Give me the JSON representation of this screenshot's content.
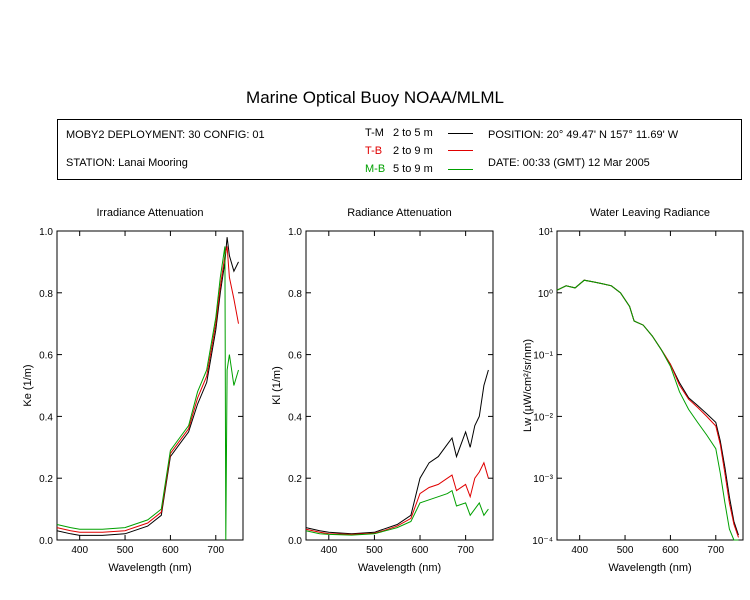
{
  "title": "Marine Optical Buoy NOAA/MLML",
  "header": {
    "deployment": "MOBY2 DEPLOYMENT: 30 CONFIG: 01",
    "station": "STATION: Lanai Mooring",
    "position": "POSITION: 20° 49.47' N   157° 11.69' W",
    "date": "DATE: 00:33 (GMT) 12 Mar 2005",
    "legend": [
      {
        "code": "T-M",
        "range": "2 to 5  m",
        "color": "#000000"
      },
      {
        "code": "T-B",
        "range": "2 to 9  m",
        "color": "#e00000"
      },
      {
        "code": "M-B",
        "range": "5 to 9  m",
        "color": "#00a000"
      }
    ]
  },
  "chart_data": [
    {
      "type": "line",
      "title": "Irradiance Attenuation",
      "xlabel": "Wavelength (nm)",
      "ylabel": "Ke  (1/m)",
      "xlim": [
        350,
        760
      ],
      "ylim": [
        0,
        1
      ],
      "xticks": [
        400,
        500,
        600,
        700
      ],
      "yticks": [
        0,
        0.2,
        0.4,
        0.6,
        0.8,
        1.0
      ],
      "ytick_labels": [
        "0.0",
        "0.2",
        "0.4",
        "0.6",
        "0.8",
        "1.0"
      ],
      "series": [
        {
          "code": "T-M",
          "color": "#000000",
          "x": [
            350,
            380,
            400,
            450,
            500,
            520,
            550,
            580,
            600,
            620,
            640,
            660,
            680,
            700,
            710,
            720,
            725,
            730,
            740,
            750
          ],
          "y": [
            0.03,
            0.02,
            0.015,
            0.015,
            0.02,
            0.03,
            0.045,
            0.08,
            0.27,
            0.31,
            0.35,
            0.44,
            0.51,
            0.68,
            0.8,
            0.9,
            0.98,
            0.92,
            0.87,
            0.9
          ]
        },
        {
          "code": "T-B",
          "color": "#e00000",
          "x": [
            350,
            380,
            400,
            450,
            500,
            520,
            550,
            580,
            600,
            620,
            640,
            660,
            680,
            700,
            710,
            720,
            725,
            730,
            740,
            750
          ],
          "y": [
            0.04,
            0.03,
            0.025,
            0.025,
            0.03,
            0.04,
            0.055,
            0.09,
            0.28,
            0.32,
            0.36,
            0.46,
            0.53,
            0.7,
            0.82,
            0.92,
            0.95,
            0.85,
            0.78,
            0.7
          ]
        },
        {
          "code": "M-B",
          "color": "#00a000",
          "x": [
            350,
            380,
            400,
            450,
            500,
            520,
            550,
            580,
            600,
            620,
            640,
            660,
            680,
            700,
            710,
            720,
            722,
            725,
            730,
            740,
            750
          ],
          "y": [
            0.05,
            0.04,
            0.035,
            0.035,
            0.04,
            0.05,
            0.065,
            0.1,
            0.29,
            0.33,
            0.37,
            0.48,
            0.55,
            0.72,
            0.85,
            0.95,
            0.0,
            0.55,
            0.6,
            0.5,
            0.55
          ]
        }
      ]
    },
    {
      "type": "line",
      "title": "Radiance Attenuation",
      "xlabel": "Wavelength (nm)",
      "ylabel": "Kl  (1/m)",
      "xlim": [
        350,
        760
      ],
      "ylim": [
        0,
        1
      ],
      "xticks": [
        400,
        500,
        600,
        700
      ],
      "yticks": [
        0,
        0.2,
        0.4,
        0.6,
        0.8,
        1.0
      ],
      "ytick_labels": [
        "0.0",
        "0.2",
        "0.4",
        "0.6",
        "0.8",
        "1.0"
      ],
      "series": [
        {
          "code": "T-M",
          "color": "#000000",
          "x": [
            350,
            380,
            400,
            450,
            500,
            520,
            550,
            580,
            600,
            620,
            640,
            660,
            670,
            680,
            700,
            710,
            720,
            730,
            740,
            750
          ],
          "y": [
            0.04,
            0.03,
            0.025,
            0.02,
            0.025,
            0.035,
            0.05,
            0.08,
            0.2,
            0.25,
            0.27,
            0.31,
            0.33,
            0.27,
            0.35,
            0.3,
            0.37,
            0.4,
            0.5,
            0.55
          ]
        },
        {
          "code": "T-B",
          "color": "#e00000",
          "x": [
            350,
            380,
            400,
            450,
            500,
            520,
            550,
            580,
            600,
            620,
            640,
            660,
            670,
            680,
            700,
            710,
            720,
            730,
            740,
            750
          ],
          "y": [
            0.035,
            0.025,
            0.02,
            0.018,
            0.022,
            0.03,
            0.045,
            0.07,
            0.15,
            0.17,
            0.18,
            0.2,
            0.21,
            0.16,
            0.18,
            0.14,
            0.2,
            0.22,
            0.25,
            0.2
          ]
        },
        {
          "code": "M-B",
          "color": "#00a000",
          "x": [
            350,
            380,
            400,
            450,
            500,
            520,
            550,
            580,
            600,
            620,
            640,
            660,
            670,
            680,
            700,
            710,
            720,
            730,
            740,
            750
          ],
          "y": [
            0.03,
            0.02,
            0.018,
            0.016,
            0.02,
            0.028,
            0.04,
            0.06,
            0.12,
            0.13,
            0.14,
            0.15,
            0.16,
            0.11,
            0.12,
            0.08,
            0.1,
            0.12,
            0.08,
            0.1
          ]
        }
      ]
    },
    {
      "type": "line",
      "title": "Water Leaving Radiance",
      "xlabel": "Wavelength (nm)",
      "ylabel": "Lw  (µW/cm²/sr/nm)",
      "log_y": true,
      "xlim": [
        350,
        760
      ],
      "ylim": [
        0.0001,
        10
      ],
      "xticks": [
        400,
        500,
        600,
        700
      ],
      "yticks": [
        0.0001,
        0.001,
        0.01,
        0.1,
        1,
        10
      ],
      "ytick_labels": [
        "10⁻⁴",
        "10⁻³",
        "10⁻²",
        "10⁻¹",
        "10⁰",
        "10¹"
      ],
      "series": [
        {
          "code": "T-M",
          "color": "#000000",
          "x": [
            350,
            370,
            390,
            410,
            430,
            450,
            470,
            490,
            510,
            520,
            540,
            560,
            580,
            600,
            620,
            640,
            660,
            680,
            700,
            710,
            720,
            730,
            740,
            750
          ],
          "y": [
            1.1,
            1.3,
            1.2,
            1.6,
            1.5,
            1.4,
            1.3,
            1.0,
            0.6,
            0.35,
            0.3,
            0.2,
            0.12,
            0.07,
            0.035,
            0.02,
            0.015,
            0.011,
            0.008,
            0.004,
            0.0015,
            0.0005,
            0.0002,
            0.00012
          ]
        },
        {
          "code": "T-B",
          "color": "#e00000",
          "x": [
            350,
            370,
            390,
            410,
            430,
            450,
            470,
            490,
            510,
            520,
            540,
            560,
            580,
            600,
            620,
            640,
            660,
            680,
            700,
            710,
            720,
            730,
            740,
            750
          ],
          "y": [
            1.1,
            1.3,
            1.2,
            1.6,
            1.5,
            1.4,
            1.3,
            1.0,
            0.6,
            0.35,
            0.3,
            0.2,
            0.12,
            0.07,
            0.032,
            0.019,
            0.014,
            0.01,
            0.007,
            0.0035,
            0.0012,
            0.0004,
            0.00018,
            0.00011
          ]
        },
        {
          "code": "M-B",
          "color": "#00a000",
          "x": [
            350,
            370,
            390,
            410,
            430,
            450,
            470,
            490,
            510,
            520,
            540,
            560,
            580,
            600,
            620,
            640,
            660,
            680,
            700,
            710,
            720,
            730,
            740,
            750
          ],
          "y": [
            1.1,
            1.3,
            1.2,
            1.6,
            1.5,
            1.4,
            1.3,
            1.0,
            0.6,
            0.35,
            0.3,
            0.2,
            0.12,
            0.065,
            0.025,
            0.013,
            0.008,
            0.005,
            0.003,
            0.0012,
            0.0004,
            0.00015,
            0.0001,
            0.0001
          ]
        }
      ]
    }
  ]
}
